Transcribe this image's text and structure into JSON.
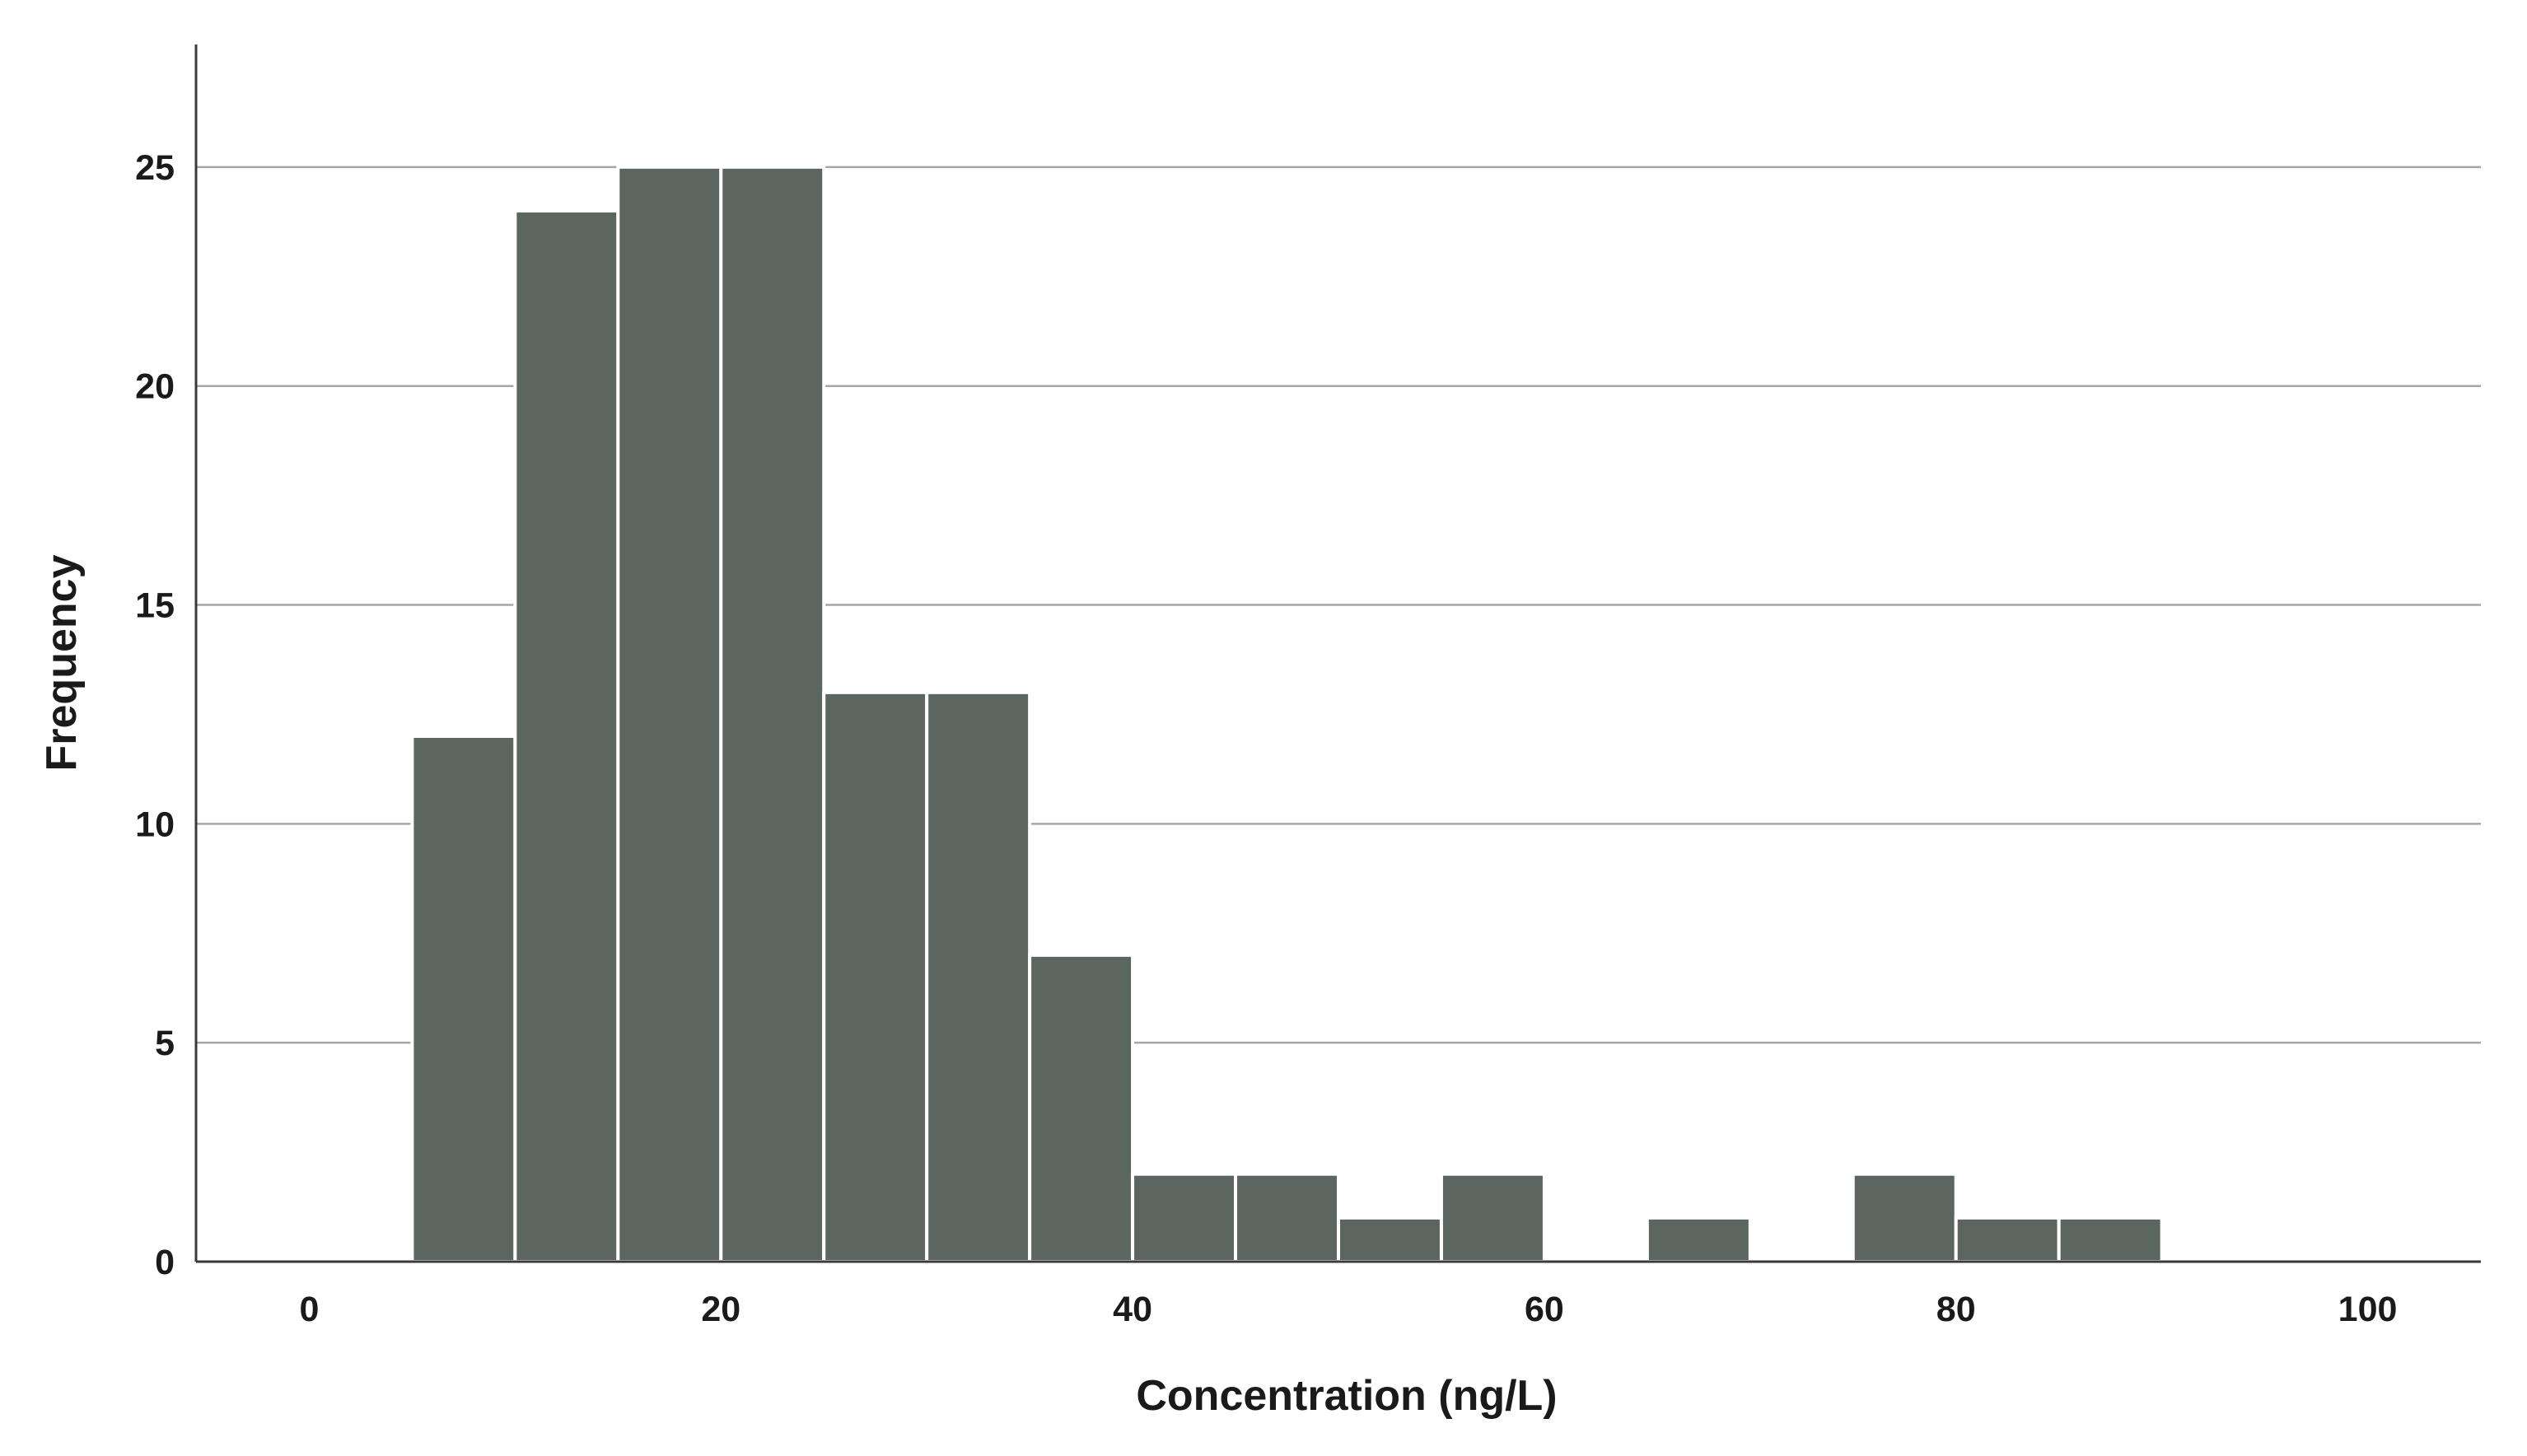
{
  "chart_data": {
    "type": "bar",
    "subtype": "histogram",
    "title": "",
    "xlabel": "Concentration (ng/L)",
    "ylabel": "Frequency",
    "xlim": [
      -5.5,
      105.5
    ],
    "ylim": [
      0,
      27.8
    ],
    "xticks": [
      0,
      20,
      40,
      60,
      80,
      100
    ],
    "yticks": [
      0,
      5,
      10,
      15,
      20,
      25
    ],
    "bin_width": 5,
    "bins": [
      {
        "x0": 5,
        "x1": 10,
        "value": 12
      },
      {
        "x0": 10,
        "x1": 15,
        "value": 24
      },
      {
        "x0": 15,
        "x1": 20,
        "value": 25
      },
      {
        "x0": 20,
        "x1": 25,
        "value": 25
      },
      {
        "x0": 25,
        "x1": 30,
        "value": 13
      },
      {
        "x0": 30,
        "x1": 35,
        "value": 13
      },
      {
        "x0": 35,
        "x1": 40,
        "value": 7
      },
      {
        "x0": 40,
        "x1": 45,
        "value": 2
      },
      {
        "x0": 45,
        "x1": 50,
        "value": 2
      },
      {
        "x0": 50,
        "x1": 55,
        "value": 1
      },
      {
        "x0": 55,
        "x1": 60,
        "value": 2
      },
      {
        "x0": 65,
        "x1": 70,
        "value": 1
      },
      {
        "x0": 75,
        "x1": 80,
        "value": 2
      },
      {
        "x0": 80,
        "x1": 85,
        "value": 1
      },
      {
        "x0": 85,
        "x1": 90,
        "value": 1
      }
    ],
    "grid": true,
    "legend": "none",
    "bar_color": "#5b6660",
    "bar_edge_color": "#ffffff",
    "grid_color": "#a6a6a6",
    "axis_color": "#3a3a3a"
  }
}
